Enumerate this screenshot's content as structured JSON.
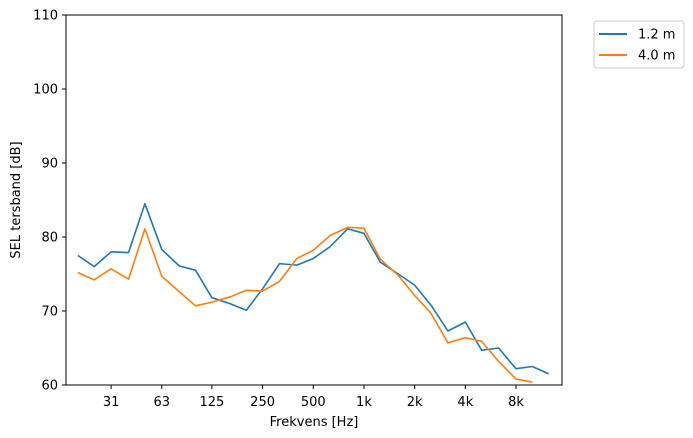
{
  "chart_data": {
    "type": "line",
    "xlabel": "Frekvens [Hz]",
    "ylabel": "SEL tersband [dB]",
    "xscale": "log",
    "xlim": [
      17,
      15000
    ],
    "ylim": [
      60,
      110
    ],
    "xticks": [
      {
        "value": 31.5,
        "label": "31"
      },
      {
        "value": 63,
        "label": "63"
      },
      {
        "value": 125,
        "label": "125"
      },
      {
        "value": 250,
        "label": "250"
      },
      {
        "value": 500,
        "label": "500"
      },
      {
        "value": 1000,
        "label": "1k"
      },
      {
        "value": 2000,
        "label": "2k"
      },
      {
        "value": 4000,
        "label": "4k"
      },
      {
        "value": 8000,
        "label": "8k"
      }
    ],
    "yticks": [
      {
        "value": 60,
        "label": "60"
      },
      {
        "value": 70,
        "label": "70"
      },
      {
        "value": 80,
        "label": "80"
      },
      {
        "value": 90,
        "label": "90"
      },
      {
        "value": 100,
        "label": "100"
      },
      {
        "value": 110,
        "label": "110"
      }
    ],
    "x": [
      20,
      25,
      31.5,
      40,
      50,
      63,
      80,
      100,
      125,
      160,
      200,
      250,
      315,
      400,
      500,
      630,
      800,
      1000,
      1250,
      1600,
      2000,
      2500,
      3150,
      4000,
      5000,
      6300,
      8000,
      10000,
      12500
    ],
    "series": [
      {
        "name": "1.2 m",
        "color": "#1f77b4",
        "values": [
          77.5,
          76.0,
          78.0,
          77.9,
          84.5,
          78.3,
          76.1,
          75.5,
          71.8,
          71.0,
          70.1,
          73.0,
          76.4,
          76.2,
          77.1,
          78.7,
          81.1,
          80.5,
          76.6,
          75.0,
          73.5,
          70.8,
          67.3,
          68.5,
          64.7,
          65.0,
          62.2,
          62.5,
          61.5
        ]
      },
      {
        "name": "4.0 m",
        "color": "#ff7f0e",
        "values": [
          75.2,
          74.2,
          75.7,
          74.3,
          81.1,
          74.7,
          72.6,
          70.7,
          71.2,
          71.9,
          72.8,
          72.7,
          74.0,
          77.1,
          78.2,
          80.2,
          81.3,
          81.2,
          77.0,
          74.8,
          72.1,
          69.7,
          65.7,
          66.4,
          65.9,
          63.2,
          60.8,
          60.4,
          null
        ]
      }
    ],
    "legend": "outside-top-right",
    "grid": false
  }
}
